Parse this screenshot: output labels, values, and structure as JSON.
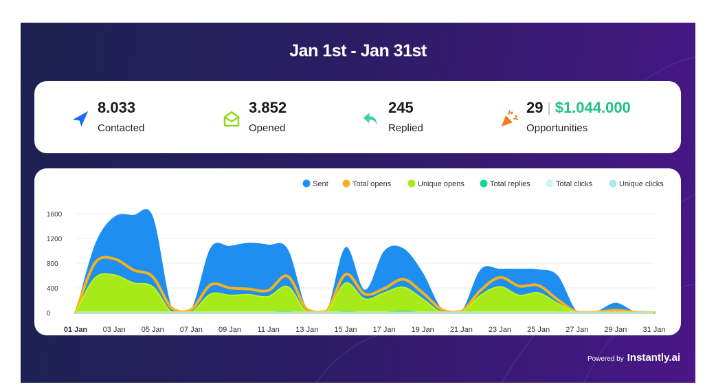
{
  "header": {
    "title": "Jan 1st - Jan 31st"
  },
  "stats": [
    {
      "value": "8.033",
      "label": "Contacted",
      "icon": "paper-plane-icon",
      "color": "#1a6cf0"
    },
    {
      "value": "3.852",
      "label": "Opened",
      "icon": "open-envelope-icon",
      "color": "#8ed81c"
    },
    {
      "value": "245",
      "label": "Replied",
      "icon": "reply-arrow-icon",
      "color": "#3dd39a"
    },
    {
      "value": "29",
      "value2": "$1.044.000",
      "label": "Opportunities",
      "icon": "party-popper-icon",
      "color": "#f47a20"
    }
  ],
  "footer": {
    "powered_by": "Powered by",
    "brand": "Instantly.ai"
  },
  "chart_data": {
    "type": "area",
    "title": "",
    "xlabel": "",
    "ylabel": "",
    "ylim": [
      0,
      1600
    ],
    "yticks": [
      "0",
      "400",
      "800",
      "1200",
      "1600"
    ],
    "yticks_values": [
      0,
      400,
      800,
      1200,
      1600
    ],
    "xticks": [
      "01 Jan",
      "03 Jan",
      "05 Jan",
      "07 Jan",
      "09 Jan",
      "11 Jan",
      "13 Jan",
      "15 Jan",
      "17 Jan",
      "19 Jan",
      "21 Jan",
      "23 Jan",
      "25 Jan",
      "27 Jan",
      "29 Jan",
      "31 Jan"
    ],
    "x_days": [
      1,
      2,
      3,
      4,
      5,
      6,
      7,
      8,
      9,
      10,
      11,
      12,
      13,
      14,
      15,
      16,
      17,
      18,
      19,
      20,
      21,
      22,
      23,
      24,
      25,
      26,
      27,
      28,
      29,
      30,
      31
    ],
    "grid": true,
    "legend_position": "top-right",
    "series": [
      {
        "name": "Sent",
        "color": "#1e8ff0",
        "values": [
          0,
          1100,
          1550,
          1580,
          1560,
          80,
          60,
          1050,
          1080,
          1130,
          1100,
          1030,
          60,
          20,
          1060,
          370,
          1000,
          1040,
          650,
          60,
          20,
          700,
          710,
          710,
          700,
          600,
          20,
          20,
          160,
          20,
          0
        ]
      },
      {
        "name": "Total opens",
        "color": "#f5b21c",
        "values": [
          0,
          800,
          870,
          690,
          580,
          70,
          50,
          450,
          400,
          380,
          360,
          590,
          50,
          20,
          620,
          300,
          390,
          540,
          320,
          50,
          20,
          360,
          570,
          430,
          440,
          210,
          10,
          10,
          40,
          10,
          0
        ]
      },
      {
        "name": "Unique opens",
        "color": "#a6ea1a",
        "values": [
          0,
          560,
          610,
          480,
          420,
          0,
          0,
          300,
          280,
          290,
          260,
          420,
          0,
          0,
          480,
          220,
          320,
          410,
          220,
          0,
          0,
          280,
          420,
          280,
          320,
          150,
          0,
          0,
          0,
          0,
          0
        ]
      },
      {
        "name": "Total replies",
        "color": "#12d69a",
        "values": [
          0,
          10,
          10,
          10,
          10,
          0,
          0,
          10,
          10,
          10,
          15,
          25,
          0,
          0,
          25,
          10,
          15,
          30,
          10,
          0,
          0,
          10,
          15,
          10,
          10,
          5,
          0,
          0,
          0,
          0,
          0
        ]
      },
      {
        "name": "Total clicks",
        "color": "#cdf3fb",
        "values": [
          0,
          0,
          0,
          0,
          0,
          0,
          0,
          0,
          0,
          0,
          0,
          0,
          0,
          0,
          0,
          0,
          0,
          0,
          0,
          0,
          0,
          0,
          0,
          0,
          0,
          0,
          0,
          0,
          0,
          0,
          0
        ]
      },
      {
        "name": "Unique clicks",
        "color": "#a8e8f5",
        "values": [
          0,
          0,
          0,
          0,
          0,
          0,
          0,
          0,
          0,
          0,
          0,
          0,
          0,
          0,
          0,
          0,
          0,
          0,
          0,
          0,
          0,
          0,
          0,
          0,
          0,
          0,
          0,
          0,
          0,
          0,
          0
        ]
      }
    ]
  }
}
